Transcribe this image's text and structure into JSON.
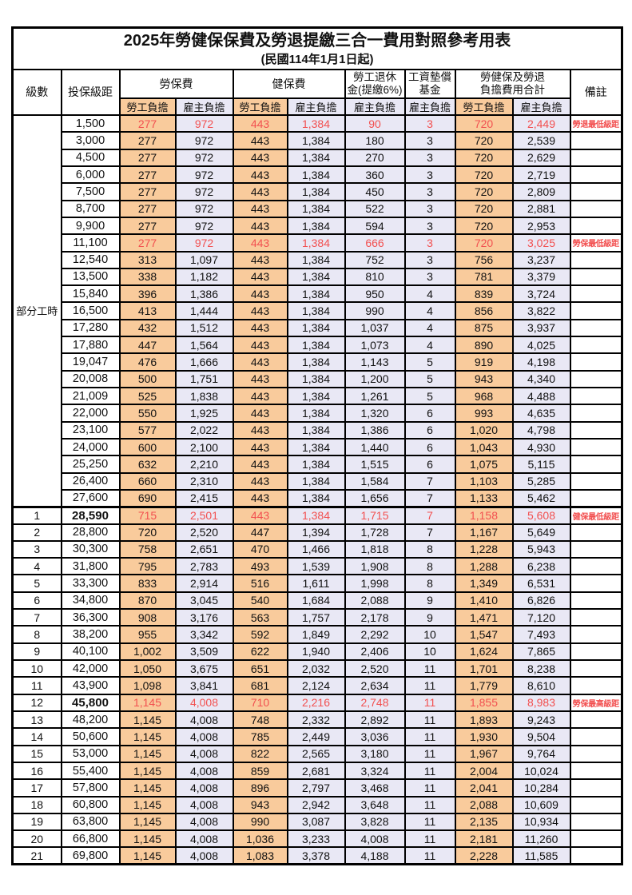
{
  "title": {
    "line1": "2025年勞健保保費及勞退提繳三合一費用對照參考用表",
    "line2": "(民國114年1月1日起)"
  },
  "columns": {
    "level": "級數",
    "bracket": "投保級距",
    "labor": "勞保費",
    "health": "健保費",
    "pension_l1": "勞工退休",
    "pension_l2": "金(提繳6%)",
    "fund_l1": "工資墊償",
    "fund_l2": "基金",
    "total_l1": "勞健保及勞退",
    "total_l2": "負擔費用合計",
    "remark": "備註",
    "employee": "勞工負擔",
    "employer": "雇主負擔"
  },
  "part_time": {
    "label": "部分工時",
    "rowspan": 23
  },
  "colors": {
    "employee_bg": "#F9CB9C",
    "employer_bg": "#E9E8F5",
    "highlight_red": "#F25050",
    "border": "#000000"
  },
  "rows": [
    {
      "level": "",
      "bracket": "1,500",
      "li_emp": "277",
      "li_er": "972",
      "hi_emp": "443",
      "hi_er": "1,384",
      "pension": "90",
      "fund": "3",
      "tot_emp": "720",
      "tot_er": "2,449",
      "remark": "勞退最低級距",
      "red": true
    },
    {
      "level": "",
      "bracket": "3,000",
      "li_emp": "277",
      "li_er": "972",
      "hi_emp": "443",
      "hi_er": "1,384",
      "pension": "180",
      "fund": "3",
      "tot_emp": "720",
      "tot_er": "2,539",
      "remark": ""
    },
    {
      "level": "",
      "bracket": "4,500",
      "li_emp": "277",
      "li_er": "972",
      "hi_emp": "443",
      "hi_er": "1,384",
      "pension": "270",
      "fund": "3",
      "tot_emp": "720",
      "tot_er": "2,629",
      "remark": ""
    },
    {
      "level": "",
      "bracket": "6,000",
      "li_emp": "277",
      "li_er": "972",
      "hi_emp": "443",
      "hi_er": "1,384",
      "pension": "360",
      "fund": "3",
      "tot_emp": "720",
      "tot_er": "2,719",
      "remark": ""
    },
    {
      "level": "",
      "bracket": "7,500",
      "li_emp": "277",
      "li_er": "972",
      "hi_emp": "443",
      "hi_er": "1,384",
      "pension": "450",
      "fund": "3",
      "tot_emp": "720",
      "tot_er": "2,809",
      "remark": ""
    },
    {
      "level": "",
      "bracket": "8,700",
      "li_emp": "277",
      "li_er": "972",
      "hi_emp": "443",
      "hi_er": "1,384",
      "pension": "522",
      "fund": "3",
      "tot_emp": "720",
      "tot_er": "2,881",
      "remark": ""
    },
    {
      "level": "",
      "bracket": "9,900",
      "li_emp": "277",
      "li_er": "972",
      "hi_emp": "443",
      "hi_er": "1,384",
      "pension": "594",
      "fund": "3",
      "tot_emp": "720",
      "tot_er": "2,953",
      "remark": ""
    },
    {
      "level": "",
      "bracket": "11,100",
      "li_emp": "277",
      "li_er": "972",
      "hi_emp": "443",
      "hi_er": "1,384",
      "pension": "666",
      "fund": "3",
      "tot_emp": "720",
      "tot_er": "3,025",
      "remark": "勞保最低級距",
      "red": true
    },
    {
      "level": "",
      "bracket": "12,540",
      "li_emp": "313",
      "li_er": "1,097",
      "hi_emp": "443",
      "hi_er": "1,384",
      "pension": "752",
      "fund": "3",
      "tot_emp": "756",
      "tot_er": "3,237",
      "remark": ""
    },
    {
      "level": "",
      "bracket": "13,500",
      "li_emp": "338",
      "li_er": "1,182",
      "hi_emp": "443",
      "hi_er": "1,384",
      "pension": "810",
      "fund": "3",
      "tot_emp": "781",
      "tot_er": "3,379",
      "remark": ""
    },
    {
      "level": "",
      "bracket": "15,840",
      "li_emp": "396",
      "li_er": "1,386",
      "hi_emp": "443",
      "hi_er": "1,384",
      "pension": "950",
      "fund": "4",
      "tot_emp": "839",
      "tot_er": "3,724",
      "remark": ""
    },
    {
      "level": "",
      "bracket": "16,500",
      "li_emp": "413",
      "li_er": "1,444",
      "hi_emp": "443",
      "hi_er": "1,384",
      "pension": "990",
      "fund": "4",
      "tot_emp": "856",
      "tot_er": "3,822",
      "remark": ""
    },
    {
      "level": "",
      "bracket": "17,280",
      "li_emp": "432",
      "li_er": "1,512",
      "hi_emp": "443",
      "hi_er": "1,384",
      "pension": "1,037",
      "fund": "4",
      "tot_emp": "875",
      "tot_er": "3,937",
      "remark": ""
    },
    {
      "level": "",
      "bracket": "17,880",
      "li_emp": "447",
      "li_er": "1,564",
      "hi_emp": "443",
      "hi_er": "1,384",
      "pension": "1,073",
      "fund": "4",
      "tot_emp": "890",
      "tot_er": "4,025",
      "remark": ""
    },
    {
      "level": "",
      "bracket": "19,047",
      "li_emp": "476",
      "li_er": "1,666",
      "hi_emp": "443",
      "hi_er": "1,384",
      "pension": "1,143",
      "fund": "5",
      "tot_emp": "919",
      "tot_er": "4,198",
      "remark": ""
    },
    {
      "level": "",
      "bracket": "20,008",
      "li_emp": "500",
      "li_er": "1,751",
      "hi_emp": "443",
      "hi_er": "1,384",
      "pension": "1,200",
      "fund": "5",
      "tot_emp": "943",
      "tot_er": "4,340",
      "remark": ""
    },
    {
      "level": "",
      "bracket": "21,009",
      "li_emp": "525",
      "li_er": "1,838",
      "hi_emp": "443",
      "hi_er": "1,384",
      "pension": "1,261",
      "fund": "5",
      "tot_emp": "968",
      "tot_er": "4,488",
      "remark": ""
    },
    {
      "level": "",
      "bracket": "22,000",
      "li_emp": "550",
      "li_er": "1,925",
      "hi_emp": "443",
      "hi_er": "1,384",
      "pension": "1,320",
      "fund": "6",
      "tot_emp": "993",
      "tot_er": "4,635",
      "remark": ""
    },
    {
      "level": "",
      "bracket": "23,100",
      "li_emp": "577",
      "li_er": "2,022",
      "hi_emp": "443",
      "hi_er": "1,384",
      "pension": "1,386",
      "fund": "6",
      "tot_emp": "1,020",
      "tot_er": "4,798",
      "remark": ""
    },
    {
      "level": "",
      "bracket": "24,000",
      "li_emp": "600",
      "li_er": "2,100",
      "hi_emp": "443",
      "hi_er": "1,384",
      "pension": "1,440",
      "fund": "6",
      "tot_emp": "1,043",
      "tot_er": "4,930",
      "remark": ""
    },
    {
      "level": "",
      "bracket": "25,250",
      "li_emp": "632",
      "li_er": "2,210",
      "hi_emp": "443",
      "hi_er": "1,384",
      "pension": "1,515",
      "fund": "6",
      "tot_emp": "1,075",
      "tot_er": "5,115",
      "remark": ""
    },
    {
      "level": "",
      "bracket": "26,400",
      "li_emp": "660",
      "li_er": "2,310",
      "hi_emp": "443",
      "hi_er": "1,384",
      "pension": "1,584",
      "fund": "7",
      "tot_emp": "1,103",
      "tot_er": "5,285",
      "remark": ""
    },
    {
      "level": "",
      "bracket": "27,600",
      "li_emp": "690",
      "li_er": "2,415",
      "hi_emp": "443",
      "hi_er": "1,384",
      "pension": "1,656",
      "fund": "7",
      "tot_emp": "1,133",
      "tot_er": "5,462",
      "remark": ""
    },
    {
      "level": "1",
      "bracket": "28,590",
      "li_emp": "715",
      "li_er": "2,501",
      "hi_emp": "443",
      "hi_er": "1,384",
      "pension": "1,715",
      "fund": "7",
      "tot_emp": "1,158",
      "tot_er": "5,608",
      "remark": "健保最低級距",
      "red": true,
      "bold": true,
      "thick": true
    },
    {
      "level": "2",
      "bracket": "28,800",
      "li_emp": "720",
      "li_er": "2,520",
      "hi_emp": "447",
      "hi_er": "1,394",
      "pension": "1,728",
      "fund": "7",
      "tot_emp": "1,167",
      "tot_er": "5,649",
      "remark": ""
    },
    {
      "level": "3",
      "bracket": "30,300",
      "li_emp": "758",
      "li_er": "2,651",
      "hi_emp": "470",
      "hi_er": "1,466",
      "pension": "1,818",
      "fund": "8",
      "tot_emp": "1,228",
      "tot_er": "5,943",
      "remark": ""
    },
    {
      "level": "4",
      "bracket": "31,800",
      "li_emp": "795",
      "li_er": "2,783",
      "hi_emp": "493",
      "hi_er": "1,539",
      "pension": "1,908",
      "fund": "8",
      "tot_emp": "1,288",
      "tot_er": "6,238",
      "remark": ""
    },
    {
      "level": "5",
      "bracket": "33,300",
      "li_emp": "833",
      "li_er": "2,914",
      "hi_emp": "516",
      "hi_er": "1,611",
      "pension": "1,998",
      "fund": "8",
      "tot_emp": "1,349",
      "tot_er": "6,531",
      "remark": ""
    },
    {
      "level": "6",
      "bracket": "34,800",
      "li_emp": "870",
      "li_er": "3,045",
      "hi_emp": "540",
      "hi_er": "1,684",
      "pension": "2,088",
      "fund": "9",
      "tot_emp": "1,410",
      "tot_er": "6,826",
      "remark": ""
    },
    {
      "level": "7",
      "bracket": "36,300",
      "li_emp": "908",
      "li_er": "3,176",
      "hi_emp": "563",
      "hi_er": "1,757",
      "pension": "2,178",
      "fund": "9",
      "tot_emp": "1,471",
      "tot_er": "7,120",
      "remark": ""
    },
    {
      "level": "8",
      "bracket": "38,200",
      "li_emp": "955",
      "li_er": "3,342",
      "hi_emp": "592",
      "hi_er": "1,849",
      "pension": "2,292",
      "fund": "10",
      "tot_emp": "1,547",
      "tot_er": "7,493",
      "remark": ""
    },
    {
      "level": "9",
      "bracket": "40,100",
      "li_emp": "1,002",
      "li_er": "3,509",
      "hi_emp": "622",
      "hi_er": "1,940",
      "pension": "2,406",
      "fund": "10",
      "tot_emp": "1,624",
      "tot_er": "7,865",
      "remark": ""
    },
    {
      "level": "10",
      "bracket": "42,000",
      "li_emp": "1,050",
      "li_er": "3,675",
      "hi_emp": "651",
      "hi_er": "2,032",
      "pension": "2,520",
      "fund": "11",
      "tot_emp": "1,701",
      "tot_er": "8,238",
      "remark": ""
    },
    {
      "level": "11",
      "bracket": "43,900",
      "li_emp": "1,098",
      "li_er": "3,841",
      "hi_emp": "681",
      "hi_er": "2,124",
      "pension": "2,634",
      "fund": "11",
      "tot_emp": "1,779",
      "tot_er": "8,610",
      "remark": ""
    },
    {
      "level": "12",
      "bracket": "45,800",
      "li_emp": "1,145",
      "li_er": "4,008",
      "hi_emp": "710",
      "hi_er": "2,216",
      "pension": "2,748",
      "fund": "11",
      "tot_emp": "1,855",
      "tot_er": "8,983",
      "remark": "勞保最高級距",
      "red": true,
      "bold": true
    },
    {
      "level": "13",
      "bracket": "48,200",
      "li_emp": "1,145",
      "li_er": "4,008",
      "hi_emp": "748",
      "hi_er": "2,332",
      "pension": "2,892",
      "fund": "11",
      "tot_emp": "1,893",
      "tot_er": "9,243",
      "remark": ""
    },
    {
      "level": "14",
      "bracket": "50,600",
      "li_emp": "1,145",
      "li_er": "4,008",
      "hi_emp": "785",
      "hi_er": "2,449",
      "pension": "3,036",
      "fund": "11",
      "tot_emp": "1,930",
      "tot_er": "9,504",
      "remark": ""
    },
    {
      "level": "15",
      "bracket": "53,000",
      "li_emp": "1,145",
      "li_er": "4,008",
      "hi_emp": "822",
      "hi_er": "2,565",
      "pension": "3,180",
      "fund": "11",
      "tot_emp": "1,967",
      "tot_er": "9,764",
      "remark": ""
    },
    {
      "level": "16",
      "bracket": "55,400",
      "li_emp": "1,145",
      "li_er": "4,008",
      "hi_emp": "859",
      "hi_er": "2,681",
      "pension": "3,324",
      "fund": "11",
      "tot_emp": "2,004",
      "tot_er": "10,024",
      "remark": ""
    },
    {
      "level": "17",
      "bracket": "57,800",
      "li_emp": "1,145",
      "li_er": "4,008",
      "hi_emp": "896",
      "hi_er": "2,797",
      "pension": "3,468",
      "fund": "11",
      "tot_emp": "2,041",
      "tot_er": "10,284",
      "remark": ""
    },
    {
      "level": "18",
      "bracket": "60,800",
      "li_emp": "1,145",
      "li_er": "4,008",
      "hi_emp": "943",
      "hi_er": "2,942",
      "pension": "3,648",
      "fund": "11",
      "tot_emp": "2,088",
      "tot_er": "10,609",
      "remark": ""
    },
    {
      "level": "19",
      "bracket": "63,800",
      "li_emp": "1,145",
      "li_er": "4,008",
      "hi_emp": "990",
      "hi_er": "3,087",
      "pension": "3,828",
      "fund": "11",
      "tot_emp": "2,135",
      "tot_er": "10,934",
      "remark": ""
    },
    {
      "level": "20",
      "bracket": "66,800",
      "li_emp": "1,145",
      "li_er": "4,008",
      "hi_emp": "1,036",
      "hi_er": "3,233",
      "pension": "4,008",
      "fund": "11",
      "tot_emp": "2,181",
      "tot_er": "11,260",
      "remark": ""
    },
    {
      "level": "21",
      "bracket": "69,800",
      "li_emp": "1,145",
      "li_er": "4,008",
      "hi_emp": "1,083",
      "hi_er": "3,378",
      "pension": "4,188",
      "fund": "11",
      "tot_emp": "2,228",
      "tot_er": "11,585",
      "remark": ""
    }
  ]
}
